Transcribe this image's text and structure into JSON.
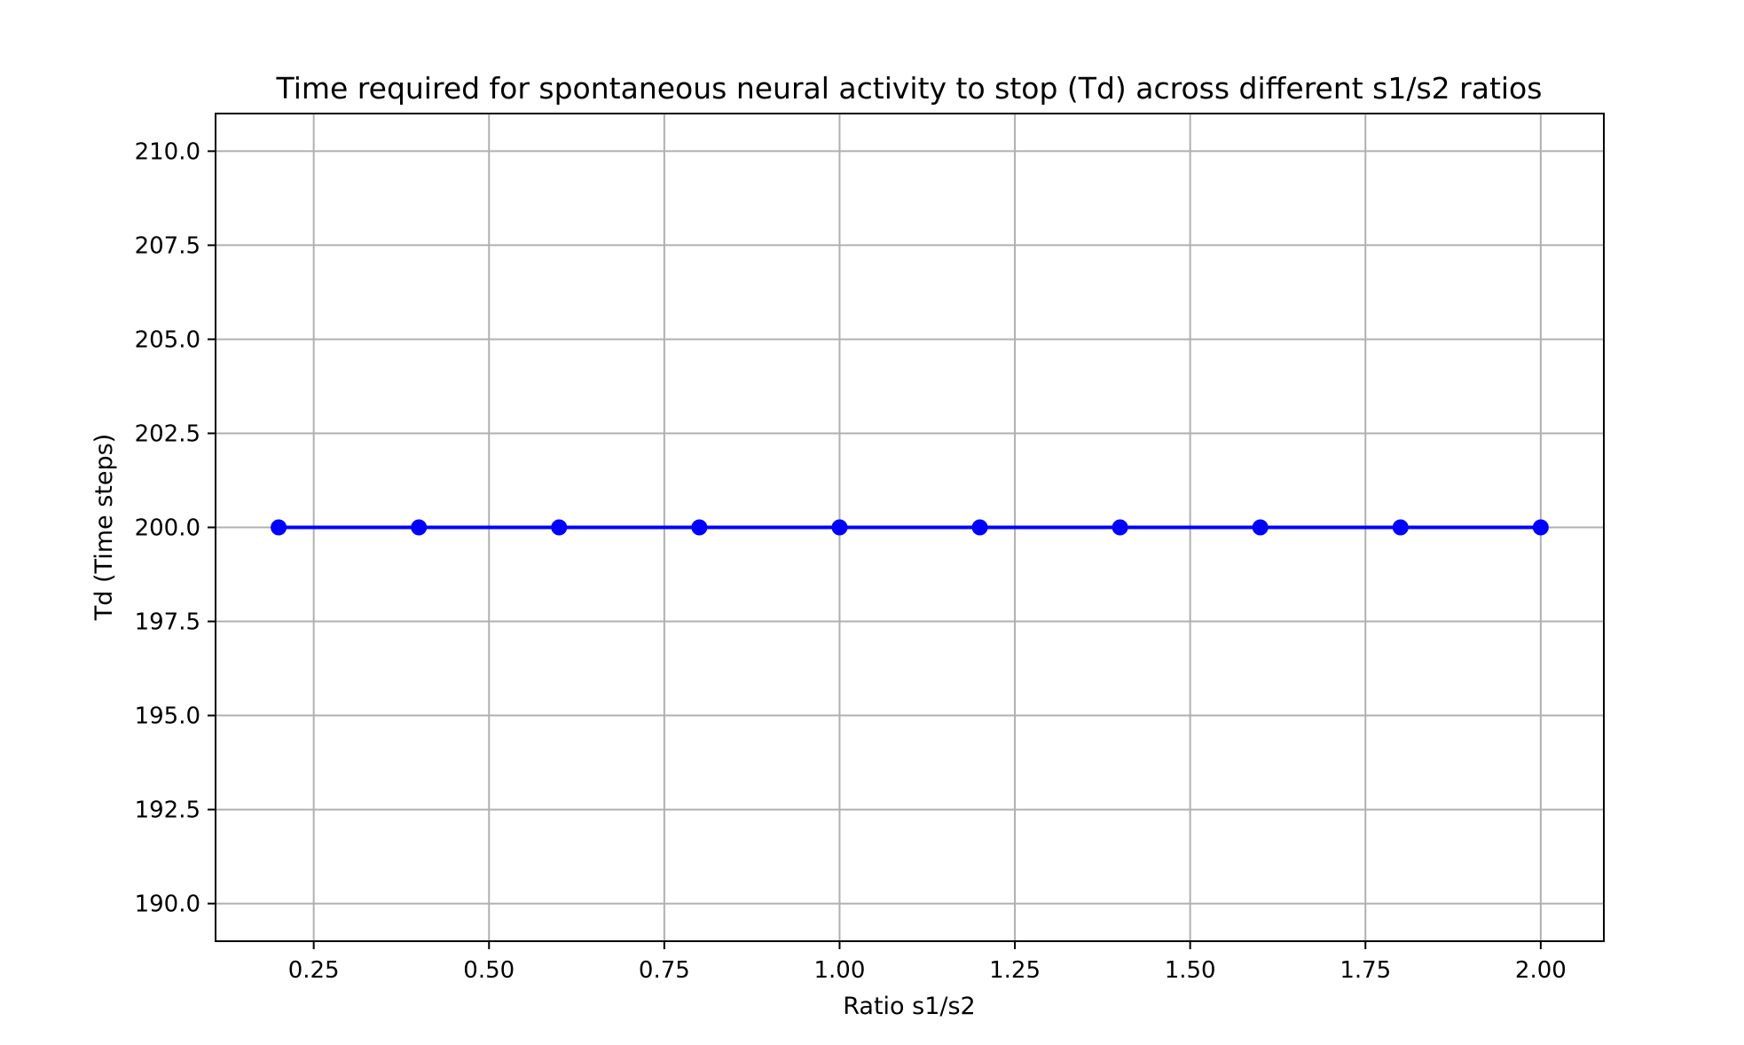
{
  "chart_data": {
    "type": "line",
    "title": "Time required for spontaneous neural activity to stop (Td) across different s1/s2 ratios",
    "xlabel": "Ratio s1/s2",
    "ylabel": "Td (Time steps)",
    "x": [
      0.2,
      0.4,
      0.6,
      0.8,
      1.0,
      1.2,
      1.4,
      1.6,
      1.8,
      2.0
    ],
    "series": [
      {
        "values": [
          200,
          200,
          200,
          200,
          200,
          200,
          200,
          200,
          200,
          200
        ],
        "color": "#0000ff",
        "marker": "circle"
      }
    ],
    "xlim": [
      0.11,
      2.09
    ],
    "ylim": [
      189,
      211
    ],
    "xticks": [
      "0.25",
      "0.50",
      "0.75",
      "1.00",
      "1.25",
      "1.50",
      "1.75",
      "2.00"
    ],
    "yticks": [
      "190.0",
      "192.5",
      "195.0",
      "197.5",
      "200.0",
      "202.5",
      "205.0",
      "207.5",
      "210.0"
    ],
    "grid": true,
    "legend": "none"
  }
}
